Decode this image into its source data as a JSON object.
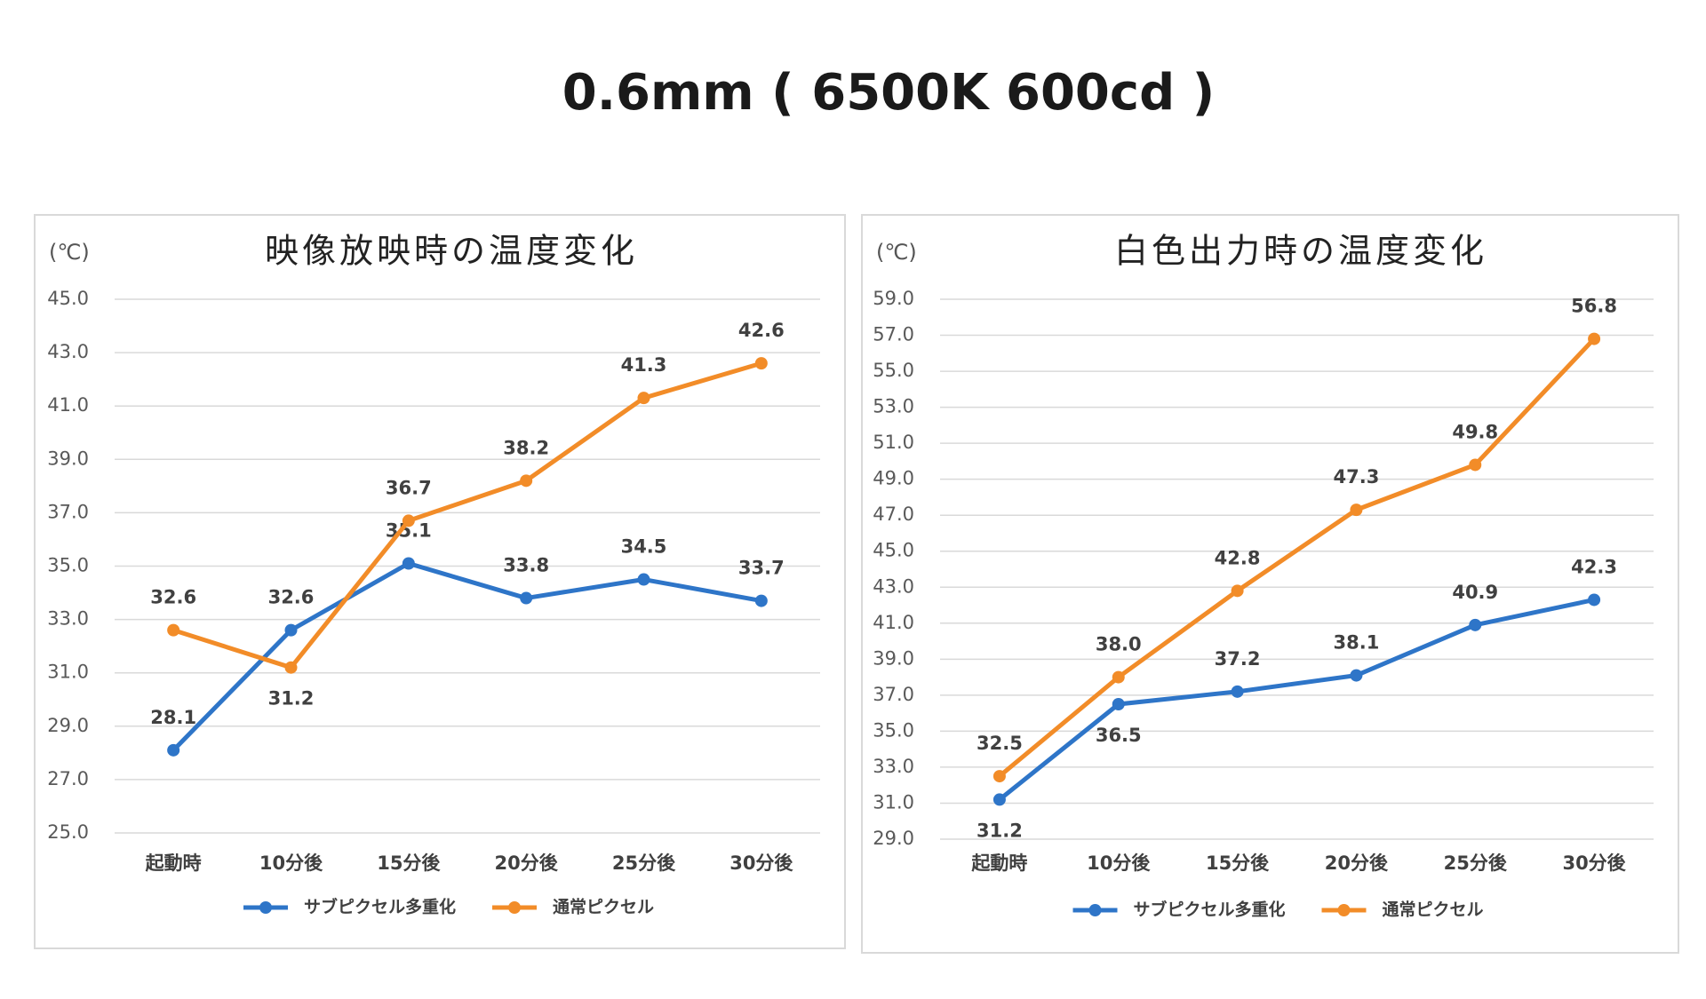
{
  "title": "0.6mm ( 6500K 600cd )",
  "chart_data": [
    {
      "type": "line",
      "title": "映像放映時の温度変化",
      "y_label": "(℃)",
      "categories": [
        "起動時",
        "10分後",
        "15分後",
        "20分後",
        "25分後",
        "30分後"
      ],
      "series": [
        {
          "name": "サブピクセル多重化",
          "color": "#2e75c8",
          "values": [
            28.1,
            32.6,
            35.1,
            33.8,
            34.5,
            33.7
          ],
          "value_labels": [
            "28.1",
            "32.6",
            "35.1",
            "33.8",
            "34.5",
            "33.7"
          ]
        },
        {
          "name": "通常ピクセル",
          "color": "#f28c28",
          "values": [
            32.6,
            31.2,
            36.7,
            38.2,
            41.3,
            42.6
          ],
          "value_labels": [
            "32.6",
            "31.2",
            "36.7",
            "38.2",
            "41.3",
            "42.6"
          ]
        }
      ],
      "ylim": [
        25,
        45
      ],
      "yticks": [
        {
          "value": 25,
          "label": "25.0"
        },
        {
          "value": 27,
          "label": "27.0"
        },
        {
          "value": 29,
          "label": "29.0"
        },
        {
          "value": 31,
          "label": "31.0"
        },
        {
          "value": 33,
          "label": "33.0"
        },
        {
          "value": 35,
          "label": "35.0"
        },
        {
          "value": 37,
          "label": "37.0"
        },
        {
          "value": 39,
          "label": "39.0"
        },
        {
          "value": 41,
          "label": "41.0"
        },
        {
          "value": 43,
          "label": "43.0"
        },
        {
          "value": 45,
          "label": "45.0"
        }
      ],
      "grid": true,
      "legend": "bottom"
    },
    {
      "type": "line",
      "title": "白色出力時の温度変化",
      "y_label": "(℃)",
      "categories": [
        "起動時",
        "10分後",
        "15分後",
        "20分後",
        "25分後",
        "30分後"
      ],
      "series": [
        {
          "name": "サブピクセル多重化",
          "color": "#2e75c8",
          "values": [
            31.2,
            36.5,
            37.2,
            38.1,
            40.9,
            42.3
          ],
          "value_labels": [
            "31.2",
            "36.5",
            "37.2",
            "38.1",
            "40.9",
            "42.3"
          ]
        },
        {
          "name": "通常ピクセル",
          "color": "#f28c28",
          "values": [
            32.5,
            38.0,
            42.8,
            47.3,
            49.8,
            56.8
          ],
          "value_labels": [
            "32.5",
            "38.0",
            "42.8",
            "47.3",
            "49.8",
            "56.8"
          ]
        }
      ],
      "ylim": [
        29,
        59
      ],
      "yticks": [
        {
          "value": 29,
          "label": "29.0"
        },
        {
          "value": 31,
          "label": "31.0"
        },
        {
          "value": 33,
          "label": "33.0"
        },
        {
          "value": 35,
          "label": "35.0"
        },
        {
          "value": 37,
          "label": "37.0"
        },
        {
          "value": 39,
          "label": "39.0"
        },
        {
          "value": 41,
          "label": "41.0"
        },
        {
          "value": 43,
          "label": "43.0"
        },
        {
          "value": 45,
          "label": "45.0"
        },
        {
          "value": 47,
          "label": "47.0"
        },
        {
          "value": 49,
          "label": "49.0"
        },
        {
          "value": 51,
          "label": "51.0"
        },
        {
          "value": 53,
          "label": "53.0"
        },
        {
          "value": 55,
          "label": "55.0"
        },
        {
          "value": 57,
          "label": "57.0"
        },
        {
          "value": 59,
          "label": "59.0"
        }
      ],
      "grid": true,
      "legend": "bottom"
    }
  ]
}
